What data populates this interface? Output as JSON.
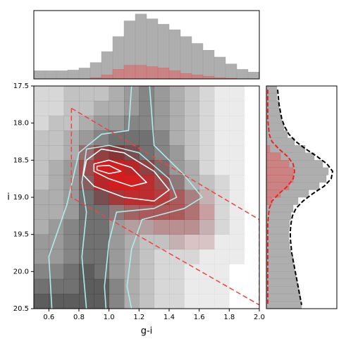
{
  "chart_data": [
    {
      "type": "histogram",
      "orientation": "vertical",
      "bins": [
        0.5,
        0.575,
        0.65,
        0.725,
        0.8,
        0.875,
        0.95,
        1.025,
        1.1,
        1.175,
        1.25,
        1.325,
        1.4,
        1.475,
        1.55,
        1.625,
        1.7,
        1.775,
        1.85,
        1.925,
        2.0
      ],
      "xlim": [
        0.5,
        2.0
      ],
      "ylim": [
        0,
        100
      ],
      "series": [
        {
          "color": "#a0a0a0",
          "values": [
            12,
            12,
            12,
            13,
            16,
            24,
            40,
            62,
            85,
            95,
            88,
            80,
            72,
            62,
            52,
            42,
            32,
            22,
            14,
            10
          ]
        },
        {
          "color": "#e06060",
          "values": [
            0,
            0,
            0,
            0,
            0,
            2,
            6,
            14,
            20,
            20,
            18,
            16,
            12,
            8,
            6,
            4,
            2,
            1,
            0,
            0
          ]
        }
      ]
    },
    {
      "type": "density",
      "xlabel": "g-i",
      "ylabel": "i",
      "xlim": [
        0.5,
        2.0
      ],
      "ylim": [
        20.5,
        17.5
      ],
      "xticks": [
        0.6,
        0.8,
        {
          "value": 1,
          "label": "1.0"
        },
        1.2,
        1.4,
        1.6,
        1.8,
        {
          "value": 2,
          "label": "2.0"
        }
      ],
      "yticks": [
        17.5,
        {
          "value": 18,
          "label": "18.0"
        },
        18.5,
        {
          "value": 19,
          "label": "19.0"
        },
        19.5,
        {
          "value": 20,
          "label": "20.0"
        },
        20.5
      ],
      "xbins": [
        0.5,
        0.6,
        0.7,
        0.8,
        0.9,
        1.0,
        1.1,
        1.2,
        1.3,
        1.4,
        1.5,
        1.6,
        1.7,
        1.8,
        1.9,
        2.0
      ],
      "ybins": [
        17.5,
        17.7,
        17.9,
        18.1,
        18.3,
        18.5,
        18.7,
        18.9,
        19.1,
        19.3,
        19.5,
        19.7,
        19.9,
        20.1,
        20.3,
        20.5
      ],
      "density_color": "#202020",
      "density": [
        [
          2,
          2,
          3,
          3,
          3,
          4,
          5,
          6,
          5,
          4,
          3,
          2,
          1,
          1,
          0
        ],
        [
          2,
          2,
          3,
          3,
          4,
          4,
          5,
          6,
          5,
          4,
          3,
          2,
          1,
          1,
          0
        ],
        [
          2,
          3,
          3,
          4,
          5,
          5,
          6,
          6,
          5,
          4,
          3,
          2,
          1,
          1,
          0
        ],
        [
          3,
          3,
          4,
          5,
          6,
          7,
          7,
          7,
          6,
          4,
          3,
          2,
          1,
          1,
          0
        ],
        [
          3,
          3,
          4,
          6,
          8,
          9,
          8,
          7,
          6,
          5,
          3,
          2,
          1,
          1,
          0
        ],
        [
          3,
          4,
          5,
          7,
          10,
          10,
          9,
          8,
          7,
          5,
          4,
          2,
          1,
          1,
          0
        ],
        [
          3,
          4,
          5,
          7,
          9,
          10,
          9,
          8,
          7,
          6,
          4,
          3,
          2,
          1,
          0
        ],
        [
          4,
          4,
          5,
          7,
          8,
          8,
          8,
          8,
          7,
          6,
          5,
          3,
          2,
          1,
          0
        ],
        [
          4,
          4,
          5,
          7,
          7,
          6,
          6,
          6,
          6,
          6,
          5,
          3,
          2,
          1,
          0
        ],
        [
          4,
          5,
          6,
          7,
          7,
          5,
          4,
          4,
          4,
          4,
          4,
          3,
          2,
          1,
          0
        ],
        [
          5,
          5,
          6,
          7,
          7,
          5,
          4,
          3,
          3,
          3,
          2,
          2,
          1,
          1,
          0
        ],
        [
          5,
          5,
          6,
          7,
          7,
          5,
          4,
          3,
          2,
          2,
          2,
          1,
          1,
          1,
          0
        ],
        [
          6,
          6,
          7,
          8,
          7,
          5,
          4,
          3,
          2,
          2,
          1,
          1,
          1,
          0,
          0
        ],
        [
          7,
          7,
          7,
          8,
          8,
          6,
          4,
          3,
          2,
          2,
          1,
          1,
          1,
          0,
          0
        ],
        [
          8,
          8,
          8,
          8,
          8,
          6,
          4,
          3,
          2,
          2,
          1,
          1,
          1,
          0,
          0
        ]
      ],
      "member_color": "#e41a1c",
      "member_density": [
        [
          0,
          0,
          0,
          0,
          0,
          0,
          0,
          0,
          0,
          0,
          0,
          0,
          0,
          0,
          0
        ],
        [
          0,
          0,
          0,
          0,
          0,
          0,
          0,
          0,
          0,
          0,
          0,
          0,
          0,
          0,
          0
        ],
        [
          0,
          0,
          0,
          0,
          0,
          0,
          0,
          0,
          0,
          0,
          0,
          0,
          0,
          0,
          0
        ],
        [
          0,
          0,
          0,
          0,
          0,
          0,
          0,
          0,
          0,
          0,
          0,
          0,
          0,
          0,
          0
        ],
        [
          0,
          0,
          0,
          2,
          4,
          4,
          2,
          0,
          0,
          0,
          0,
          0,
          0,
          0,
          0
        ],
        [
          0,
          0,
          0,
          4,
          9,
          9,
          7,
          4,
          1,
          0,
          0,
          0,
          0,
          0,
          0
        ],
        [
          0,
          0,
          0,
          2,
          7,
          9,
          9,
          7,
          4,
          1,
          0,
          0,
          0,
          0,
          0
        ],
        [
          0,
          0,
          0,
          0,
          2,
          5,
          7,
          7,
          6,
          4,
          2,
          1,
          0,
          0,
          0
        ],
        [
          0,
          0,
          0,
          0,
          0,
          1,
          3,
          4,
          4,
          4,
          3,
          2,
          0,
          0,
          0
        ],
        [
          0,
          0,
          0,
          0,
          0,
          0,
          1,
          1,
          2,
          2,
          2,
          1,
          0,
          0,
          0
        ],
        [
          0,
          0,
          0,
          0,
          0,
          0,
          0,
          0,
          0,
          1,
          1,
          1,
          0,
          0,
          0
        ],
        [
          0,
          0,
          0,
          0,
          0,
          0,
          0,
          0,
          0,
          0,
          0,
          0,
          0,
          0,
          0
        ],
        [
          0,
          0,
          0,
          0,
          0,
          0,
          0,
          0,
          0,
          0,
          0,
          0,
          0,
          0,
          0
        ],
        [
          0,
          0,
          0,
          0,
          0,
          0,
          0,
          0,
          0,
          0,
          0,
          0,
          0,
          0,
          0
        ],
        [
          0,
          0,
          0,
          0,
          0,
          0,
          0,
          0,
          0,
          0,
          0,
          0,
          0,
          0,
          0
        ]
      ],
      "lines": [
        {
          "color": "#b0ecec",
          "dashed": false,
          "x": [
            0.62,
            0.6,
            0.72,
            0.8,
            0.95,
            1.13,
            1.15,
            null,
            1.27,
            1.3,
            1.5,
            1.62,
            1.5,
            1.22,
            1.15,
            1.12,
            1.15
          ],
          "y": [
            20.5,
            19.8,
            19.1,
            18.4,
            18.15,
            18.1,
            17.5,
            null,
            17.5,
            18.3,
            18.7,
            19.0,
            19.15,
            19.3,
            19.7,
            20.2,
            20.5
          ]
        },
        {
          "color": "#b0ecec",
          "dashed": false,
          "x": [
            0.85,
            0.82,
            0.85,
            0.82,
            0.85,
            1.0,
            1.2,
            1.4,
            1.45,
            1.3,
            1.05,
            1.0,
            0.97,
            0.98
          ],
          "y": [
            20.5,
            19.8,
            19.2,
            18.8,
            18.35,
            18.3,
            18.4,
            18.75,
            19.0,
            19.15,
            19.2,
            19.6,
            20.2,
            20.5
          ]
        },
        {
          "color": "#ffffff",
          "dashed": false,
          "x": [
            0.85,
            0.95,
            1.1,
            1.3,
            1.4,
            1.3,
            1.1,
            0.9,
            0.83,
            0.85
          ],
          "y": [
            18.5,
            18.35,
            18.4,
            18.65,
            18.9,
            19.05,
            19.0,
            18.85,
            18.7,
            18.5
          ]
        },
        {
          "color": "#ffffff",
          "dashed": false,
          "x": [
            0.9,
            1.0,
            1.15,
            1.25,
            1.15,
            1.0,
            0.9,
            0.9
          ],
          "y": [
            18.55,
            18.5,
            18.6,
            18.8,
            18.85,
            18.75,
            18.65,
            18.55
          ]
        },
        {
          "color": "#ffffff",
          "dashed": false,
          "x": [
            0.92,
            1.0,
            1.08,
            1.0,
            0.92,
            0.92
          ],
          "y": [
            18.58,
            18.57,
            18.65,
            18.68,
            18.63,
            18.58
          ]
        },
        {
          "color": "#ee4444",
          "dashed": true,
          "x": [
            0.75,
            2.0,
            2.0,
            0.75,
            0.75
          ],
          "y": [
            17.8,
            19.3,
            20.45,
            19.0,
            17.8
          ]
        }
      ]
    },
    {
      "type": "histogram",
      "orientation": "horizontal",
      "bins": [
        17.5,
        17.6,
        17.7,
        17.8,
        17.9,
        18.0,
        18.1,
        18.2,
        18.3,
        18.4,
        18.5,
        18.6,
        18.7,
        18.8,
        18.9,
        19.0,
        19.1,
        19.2,
        19.3,
        19.4,
        19.5,
        19.6,
        19.7,
        19.8,
        19.9,
        20.0,
        20.1,
        20.2,
        20.3,
        20.4,
        20.5
      ],
      "ylim": [
        20.5,
        17.5
      ],
      "xlim": [
        0,
        100
      ],
      "series": [
        {
          "color": "#a0a0a0",
          "values": [
            15,
            15,
            18,
            20,
            22,
            25,
            30,
            40,
            55,
            68,
            80,
            88,
            85,
            75,
            60,
            45,
            38,
            35,
            33,
            32,
            32,
            33,
            35,
            38,
            40,
            42,
            44,
            46,
            48,
            50
          ]
        },
        {
          "color": "#e06060",
          "values": [
            0,
            0,
            0,
            0,
            0,
            0,
            0,
            0,
            5,
            20,
            32,
            38,
            38,
            32,
            20,
            8,
            0,
            0,
            0,
            0,
            0,
            0,
            0,
            0,
            0,
            0,
            0,
            0,
            0,
            0
          ]
        }
      ],
      "curve_y": [
        17.55,
        17.65,
        17.75,
        17.85,
        17.95,
        18.05,
        18.15,
        18.25,
        18.35,
        18.45,
        18.55,
        18.65,
        18.75,
        18.85,
        18.95,
        19.05,
        19.15,
        19.25,
        19.35,
        19.45,
        19.55,
        19.65,
        19.75,
        19.85,
        19.95,
        20.05,
        20.15,
        20.25,
        20.35,
        20.45
      ],
      "curves": [
        {
          "color": "#000000",
          "dashed": true,
          "values": [
            16,
            17,
            18,
            20,
            22,
            26,
            32,
            42,
            56,
            72,
            86,
            94,
            92,
            82,
            66,
            52,
            42,
            37,
            35,
            34,
            34,
            35,
            36,
            38,
            40,
            42,
            44,
            46,
            48,
            50
          ]
        },
        {
          "color": "#ee2222",
          "dashed": true,
          "values": [
            2,
            2,
            2,
            2,
            2,
            3,
            4,
            8,
            18,
            30,
            38,
            40,
            38,
            30,
            18,
            8,
            4,
            3,
            2,
            2,
            2,
            2,
            2,
            2,
            2,
            2,
            2,
            2,
            2,
            2
          ]
        }
      ]
    }
  ]
}
